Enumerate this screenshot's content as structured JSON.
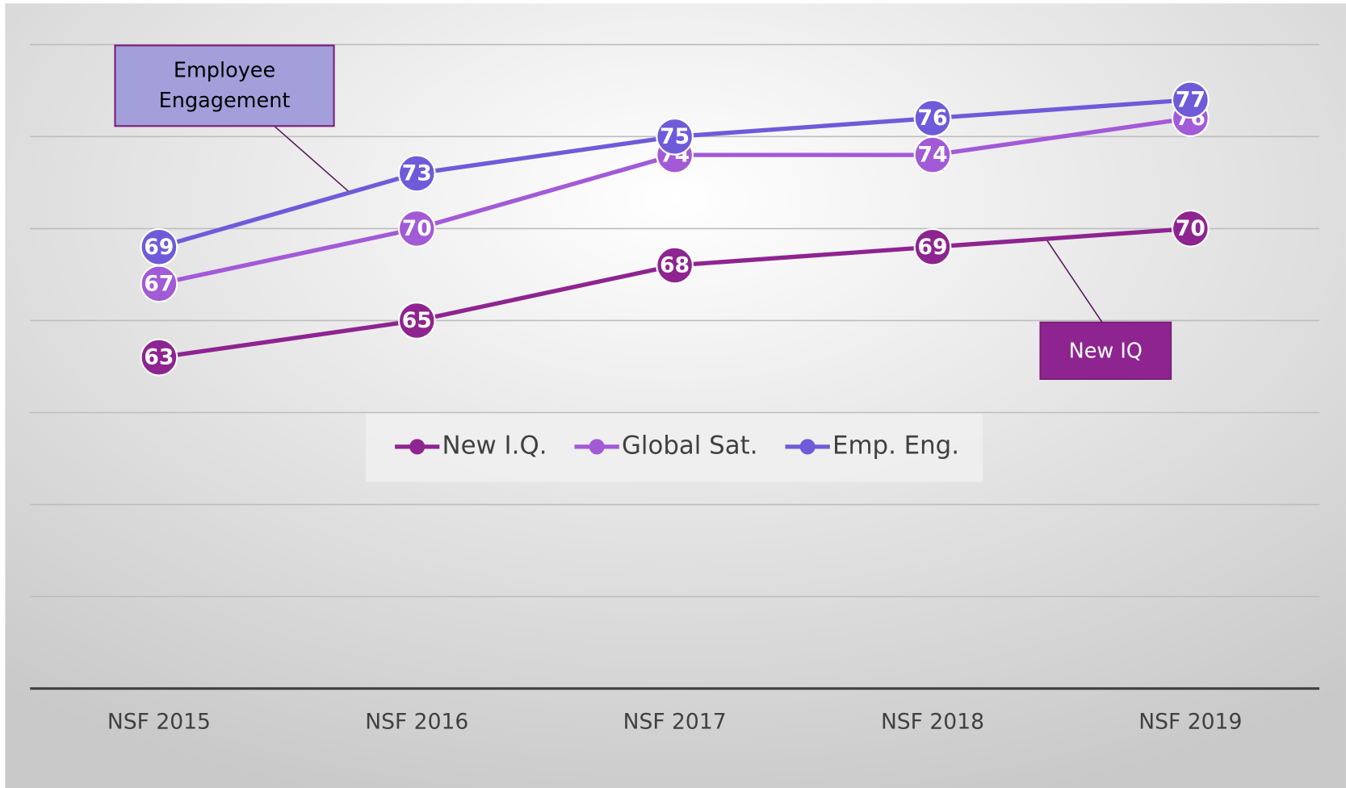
{
  "chart_data": {
    "type": "line",
    "categories": [
      "NSF 2015",
      "NSF 2016",
      "NSF 2017",
      "NSF 2018",
      "NSF 2019"
    ],
    "series": [
      {
        "name": "New I.Q.",
        "color": "#8e2490",
        "values": [
          63,
          65,
          68,
          69,
          70
        ]
      },
      {
        "name": "Global Sat.",
        "color": "#a25ad6",
        "values": [
          67,
          70,
          74,
          74,
          76
        ]
      },
      {
        "name": "Emp. Eng.",
        "color": "#6f5bd9",
        "values": [
          69,
          73,
          75,
          76,
          77
        ]
      }
    ],
    "ylim": [
      45,
      80
    ],
    "yticks": [
      45,
      50,
      55,
      60,
      65,
      70,
      75,
      80
    ],
    "grid": true,
    "legend": "center",
    "annotations": [
      {
        "text": "Employee Engagement",
        "series": 2,
        "color": "#a29fdb"
      },
      {
        "text": "New IQ",
        "series": 0,
        "color": "#8e2490"
      }
    ]
  }
}
